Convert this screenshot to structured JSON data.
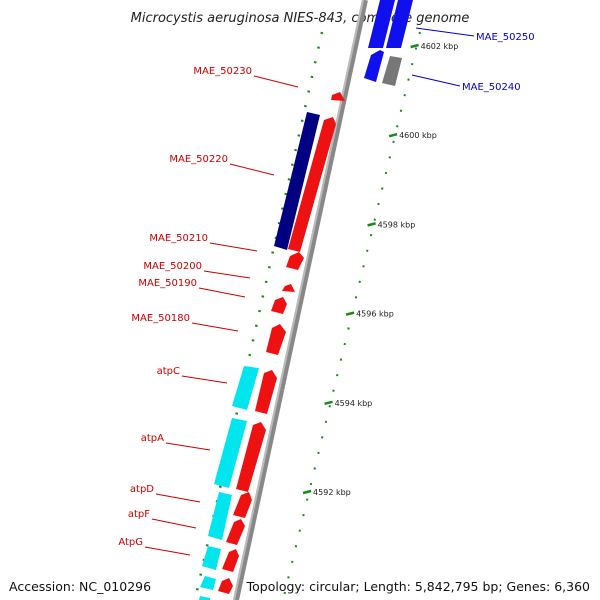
{
  "title": "Microcystis aeruginosa NIES-843, complete genome",
  "footer": {
    "accession": "Accession: NC_010296",
    "summary": "Topology: circular; Length: 5,842,795 bp; Genes: 6,360"
  },
  "ticks": [
    {
      "label": "4602 kbp",
      "kbp": 4602
    },
    {
      "label": "4600 kbp",
      "kbp": 4600
    },
    {
      "label": "4598 kbp",
      "kbp": 4598
    },
    {
      "label": "4596 kbp",
      "kbp": 4596
    },
    {
      "label": "4594 kbp",
      "kbp": 4594
    },
    {
      "label": "4592 kbp",
      "kbp": 4592
    }
  ],
  "genes_right": [
    {
      "name": "MAE_50250",
      "color": "#0000cc"
    },
    {
      "name": "MAE_50240",
      "color": "#0000cc"
    }
  ],
  "genes_left": [
    {
      "name": "MAE_50230",
      "color": "#cc0000"
    },
    {
      "name": "MAE_50220",
      "color": "#cc0000"
    },
    {
      "name": "MAE_50210",
      "color": "#cc0000"
    },
    {
      "name": "MAE_50200",
      "color": "#cc0000"
    },
    {
      "name": "MAE_50190",
      "color": "#cc0000"
    },
    {
      "name": "MAE_50180",
      "color": "#cc0000"
    },
    {
      "name": "atpC",
      "color": "#cc0000"
    },
    {
      "name": "atpA",
      "color": "#cc0000"
    },
    {
      "name": "atpD",
      "color": "#cc0000"
    },
    {
      "name": "atpF",
      "color": "#cc0000"
    },
    {
      "name": "AtpG",
      "color": "#cc0000"
    }
  ]
}
